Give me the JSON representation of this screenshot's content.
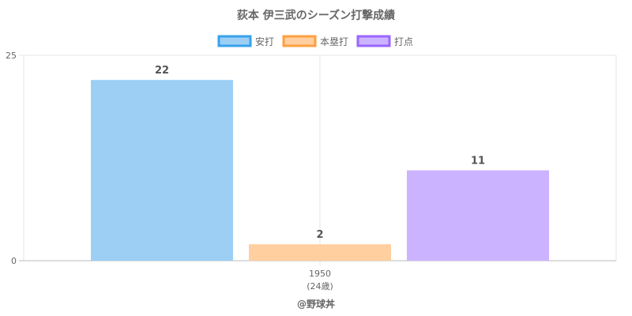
{
  "chart_data": {
    "type": "bar",
    "title": "荻本 伊三武のシーズン打撃成績",
    "categories": [
      "1950"
    ],
    "category_sublabels": [
      "(24歳)"
    ],
    "series": [
      {
        "name": "安打",
        "values": [
          22
        ],
        "color": "#9dcff5",
        "border": "#36a2eb"
      },
      {
        "name": "本塁打",
        "values": [
          2
        ],
        "color": "#ffcf9f",
        "border": "#ff9f40"
      },
      {
        "name": "打点",
        "values": [
          11
        ],
        "color": "#ccb3ff",
        "border": "#9966ff"
      }
    ],
    "ylim": [
      0,
      25
    ],
    "yticks": [
      "0",
      "25"
    ],
    "xlabel": "",
    "ylabel": "",
    "legend_position": "top",
    "grid": true,
    "credit": "@野球丼"
  }
}
